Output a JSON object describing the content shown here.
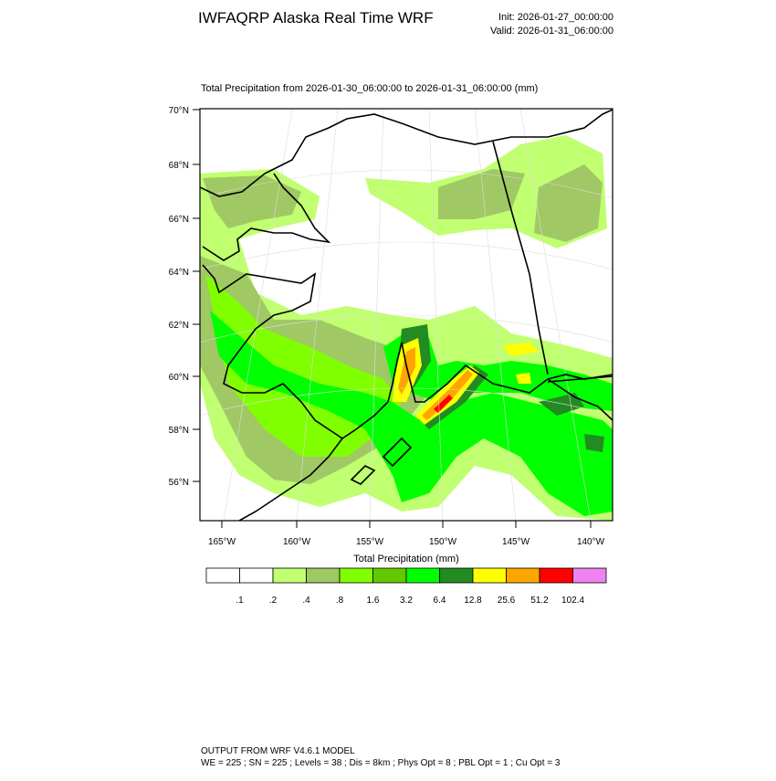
{
  "header": {
    "title": "IWFAQRP Alaska Real Time WRF",
    "init": "Init: 2026-01-27_00:00:00",
    "valid": "Valid: 2026-01-31_06:00:00"
  },
  "map": {
    "subtitle": "Total Precipitation from 2026-01-30_06:00:00 to 2026-01-31_06:00:00   (mm)",
    "lat_labels": [
      "70°N",
      "68°N",
      "66°N",
      "64°N",
      "62°N",
      "60°N",
      "58°N",
      "56°N"
    ],
    "lon_labels": [
      "165°W",
      "160°W",
      "155°W",
      "150°W",
      "145°W",
      "140°W"
    ]
  },
  "colorbar": {
    "title": "Total Precipitation  (mm)",
    "labels": [
      ".1",
      ".2",
      ".4",
      ".8",
      "1.6",
      "3.2",
      "6.4",
      "12.8",
      "25.6",
      "51.2",
      "102.4"
    ],
    "colors": [
      "#ffffff",
      "#ffffff",
      "#c0ff70",
      "#a0c864",
      "#80ff00",
      "#64c800",
      "#00ff00",
      "#228b22",
      "#ffff00",
      "#ffa500",
      "#ff0000",
      "#ee82ee"
    ]
  },
  "footer": {
    "line1": "OUTPUT FROM WRF V4.6.1 MODEL",
    "line2": "WE = 225 ; SN = 225 ; Levels = 38 ; Dis = 8km ; Phys Opt = 8 ; PBL Opt = 1 ; Cu Opt = 3"
  }
}
